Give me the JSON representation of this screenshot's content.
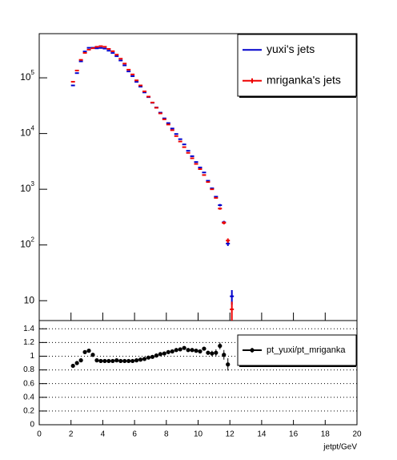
{
  "chart_data": [
    {
      "type": "scatter",
      "xlim": [
        0,
        20
      ],
      "ylim": [
        4.4,
        620000
      ],
      "log_y": true,
      "yticks": [
        {
          "value": 10,
          "label": "10"
        },
        {
          "value": 100,
          "label": "10^2"
        },
        {
          "value": 1000,
          "label": "10^3"
        },
        {
          "value": 10000,
          "label": "10^4"
        },
        {
          "value": 100000,
          "label": "10^5"
        }
      ],
      "legend": "top-right",
      "x": [
        2.125,
        2.375,
        2.625,
        2.875,
        3.125,
        3.375,
        3.625,
        3.875,
        4.125,
        4.375,
        4.625,
        4.875,
        5.125,
        5.375,
        5.625,
        5.875,
        6.125,
        6.375,
        6.625,
        6.875,
        7.125,
        7.375,
        7.625,
        7.875,
        8.125,
        8.375,
        8.625,
        8.875,
        9.125,
        9.375,
        9.625,
        9.875,
        10.125,
        10.375,
        10.625,
        10.875,
        11.125,
        11.375,
        11.625,
        11.875,
        12.125
      ],
      "series": [
        {
          "name": "yuxi's jets",
          "color": "#0000cc",
          "values": [
            73000,
            121500,
            197400,
            296800,
            345600,
            346800,
            338400,
            344100,
            334800,
            306900,
            279000,
            244400,
            204600,
            167400,
            130200,
            107000,
            84600,
            69400,
            54700,
            45100,
            35600,
            29300,
            23700,
            18700,
            15400,
            12300,
            9810,
            7920,
            6380,
            4900,
            3920,
            3080,
            2460,
            2000,
            1420,
            1040,
            735,
            518,
            255,
            106,
            12
          ],
          "errors": [
            null,
            null,
            null,
            null,
            null,
            null,
            null,
            null,
            null,
            null,
            null,
            null,
            null,
            null,
            null,
            null,
            null,
            null,
            null,
            null,
            null,
            null,
            null,
            null,
            null,
            null,
            null,
            null,
            null,
            null,
            null,
            null,
            null,
            null,
            null,
            null,
            null,
            25,
            16,
            10,
            3.5
          ]
        },
        {
          "name": "mriganka's jets",
          "color": "#ee0000",
          "values": [
            85000,
            135000,
            210000,
            280000,
            320000,
            340000,
            360000,
            370000,
            360000,
            330000,
            300000,
            260000,
            220000,
            180000,
            140000,
            115000,
            90000,
            73000,
            57000,
            46000,
            36000,
            29000,
            23000,
            18000,
            14500,
            11500,
            9000,
            7200,
            5700,
            4500,
            3600,
            2850,
            2300,
            1800,
            1350,
            1000,
            700,
            450,
            250,
            120,
            7
          ],
          "errors": [
            null,
            null,
            null,
            null,
            null,
            null,
            null,
            null,
            null,
            null,
            null,
            null,
            null,
            null,
            null,
            null,
            null,
            null,
            null,
            null,
            null,
            null,
            null,
            null,
            null,
            null,
            null,
            null,
            null,
            null,
            null,
            null,
            null,
            null,
            null,
            null,
            null,
            21,
            16,
            11,
            2.6
          ]
        }
      ]
    },
    {
      "type": "scatter",
      "xlim": [
        0,
        20
      ],
      "ylim": [
        0,
        1.52
      ],
      "xlabel": "jetpt/GeV",
      "xticks": [
        0,
        2,
        4,
        6,
        8,
        10,
        12,
        14,
        16,
        18,
        20
      ],
      "yticks": [
        0,
        0.2,
        0.4,
        0.6,
        0.8,
        1,
        1.2,
        1.4
      ],
      "grid": true,
      "legend": "top-right",
      "x": [
        2.125,
        2.375,
        2.625,
        2.875,
        3.125,
        3.375,
        3.625,
        3.875,
        4.125,
        4.375,
        4.625,
        4.875,
        5.125,
        5.375,
        5.625,
        5.875,
        6.125,
        6.375,
        6.625,
        6.875,
        7.125,
        7.375,
        7.625,
        7.875,
        8.125,
        8.375,
        8.625,
        8.875,
        9.125,
        9.375,
        9.625,
        9.875,
        10.125,
        10.375,
        10.625,
        10.875,
        11.125,
        11.375,
        11.625,
        11.875
      ],
      "series": [
        {
          "name": "pt_yuxi/pt_mriganka",
          "color": "#000000",
          "values": [
            0.86,
            0.9,
            0.94,
            1.06,
            1.08,
            1.02,
            0.94,
            0.93,
            0.93,
            0.93,
            0.93,
            0.94,
            0.93,
            0.93,
            0.93,
            0.93,
            0.94,
            0.95,
            0.96,
            0.98,
            0.99,
            1.01,
            1.03,
            1.04,
            1.06,
            1.07,
            1.09,
            1.1,
            1.12,
            1.09,
            1.09,
            1.08,
            1.07,
            1.11,
            1.05,
            1.04,
            1.05,
            1.15,
            1.02,
            0.88
          ],
          "errors": [
            0.01,
            0.01,
            0.01,
            0.01,
            0.005,
            0.005,
            0.005,
            0.005,
            0.005,
            0.005,
            0.005,
            0.005,
            0.005,
            0.005,
            0.005,
            0.005,
            0.005,
            0.005,
            0.005,
            0.005,
            0.005,
            0.005,
            0.005,
            0.005,
            0.01,
            0.01,
            0.01,
            0.01,
            0.01,
            0.01,
            0.01,
            0.01,
            0.02,
            0.02,
            0.03,
            0.04,
            0.05,
            0.05,
            0.07,
            0.09
          ]
        }
      ]
    }
  ]
}
